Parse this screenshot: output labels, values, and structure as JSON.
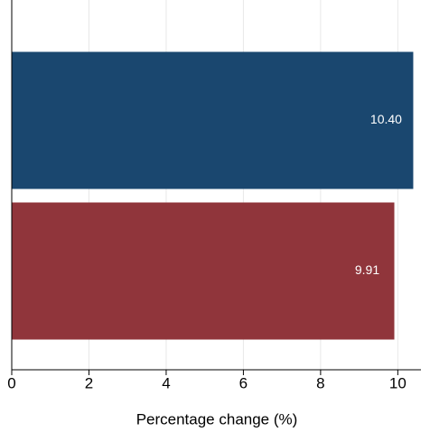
{
  "chart_data": {
    "type": "hbar",
    "categories": [
      null,
      null
    ],
    "values": [
      10.4,
      9.91
    ],
    "value_labels": [
      "10.40",
      "9.91"
    ],
    "colors": [
      "#1a476f",
      "#90353b"
    ],
    "x_label": "Percentage change (%)",
    "xlim": [
      0,
      10.6
    ],
    "xticks": [
      0,
      2,
      4,
      6,
      8,
      10
    ],
    "grid": true
  }
}
